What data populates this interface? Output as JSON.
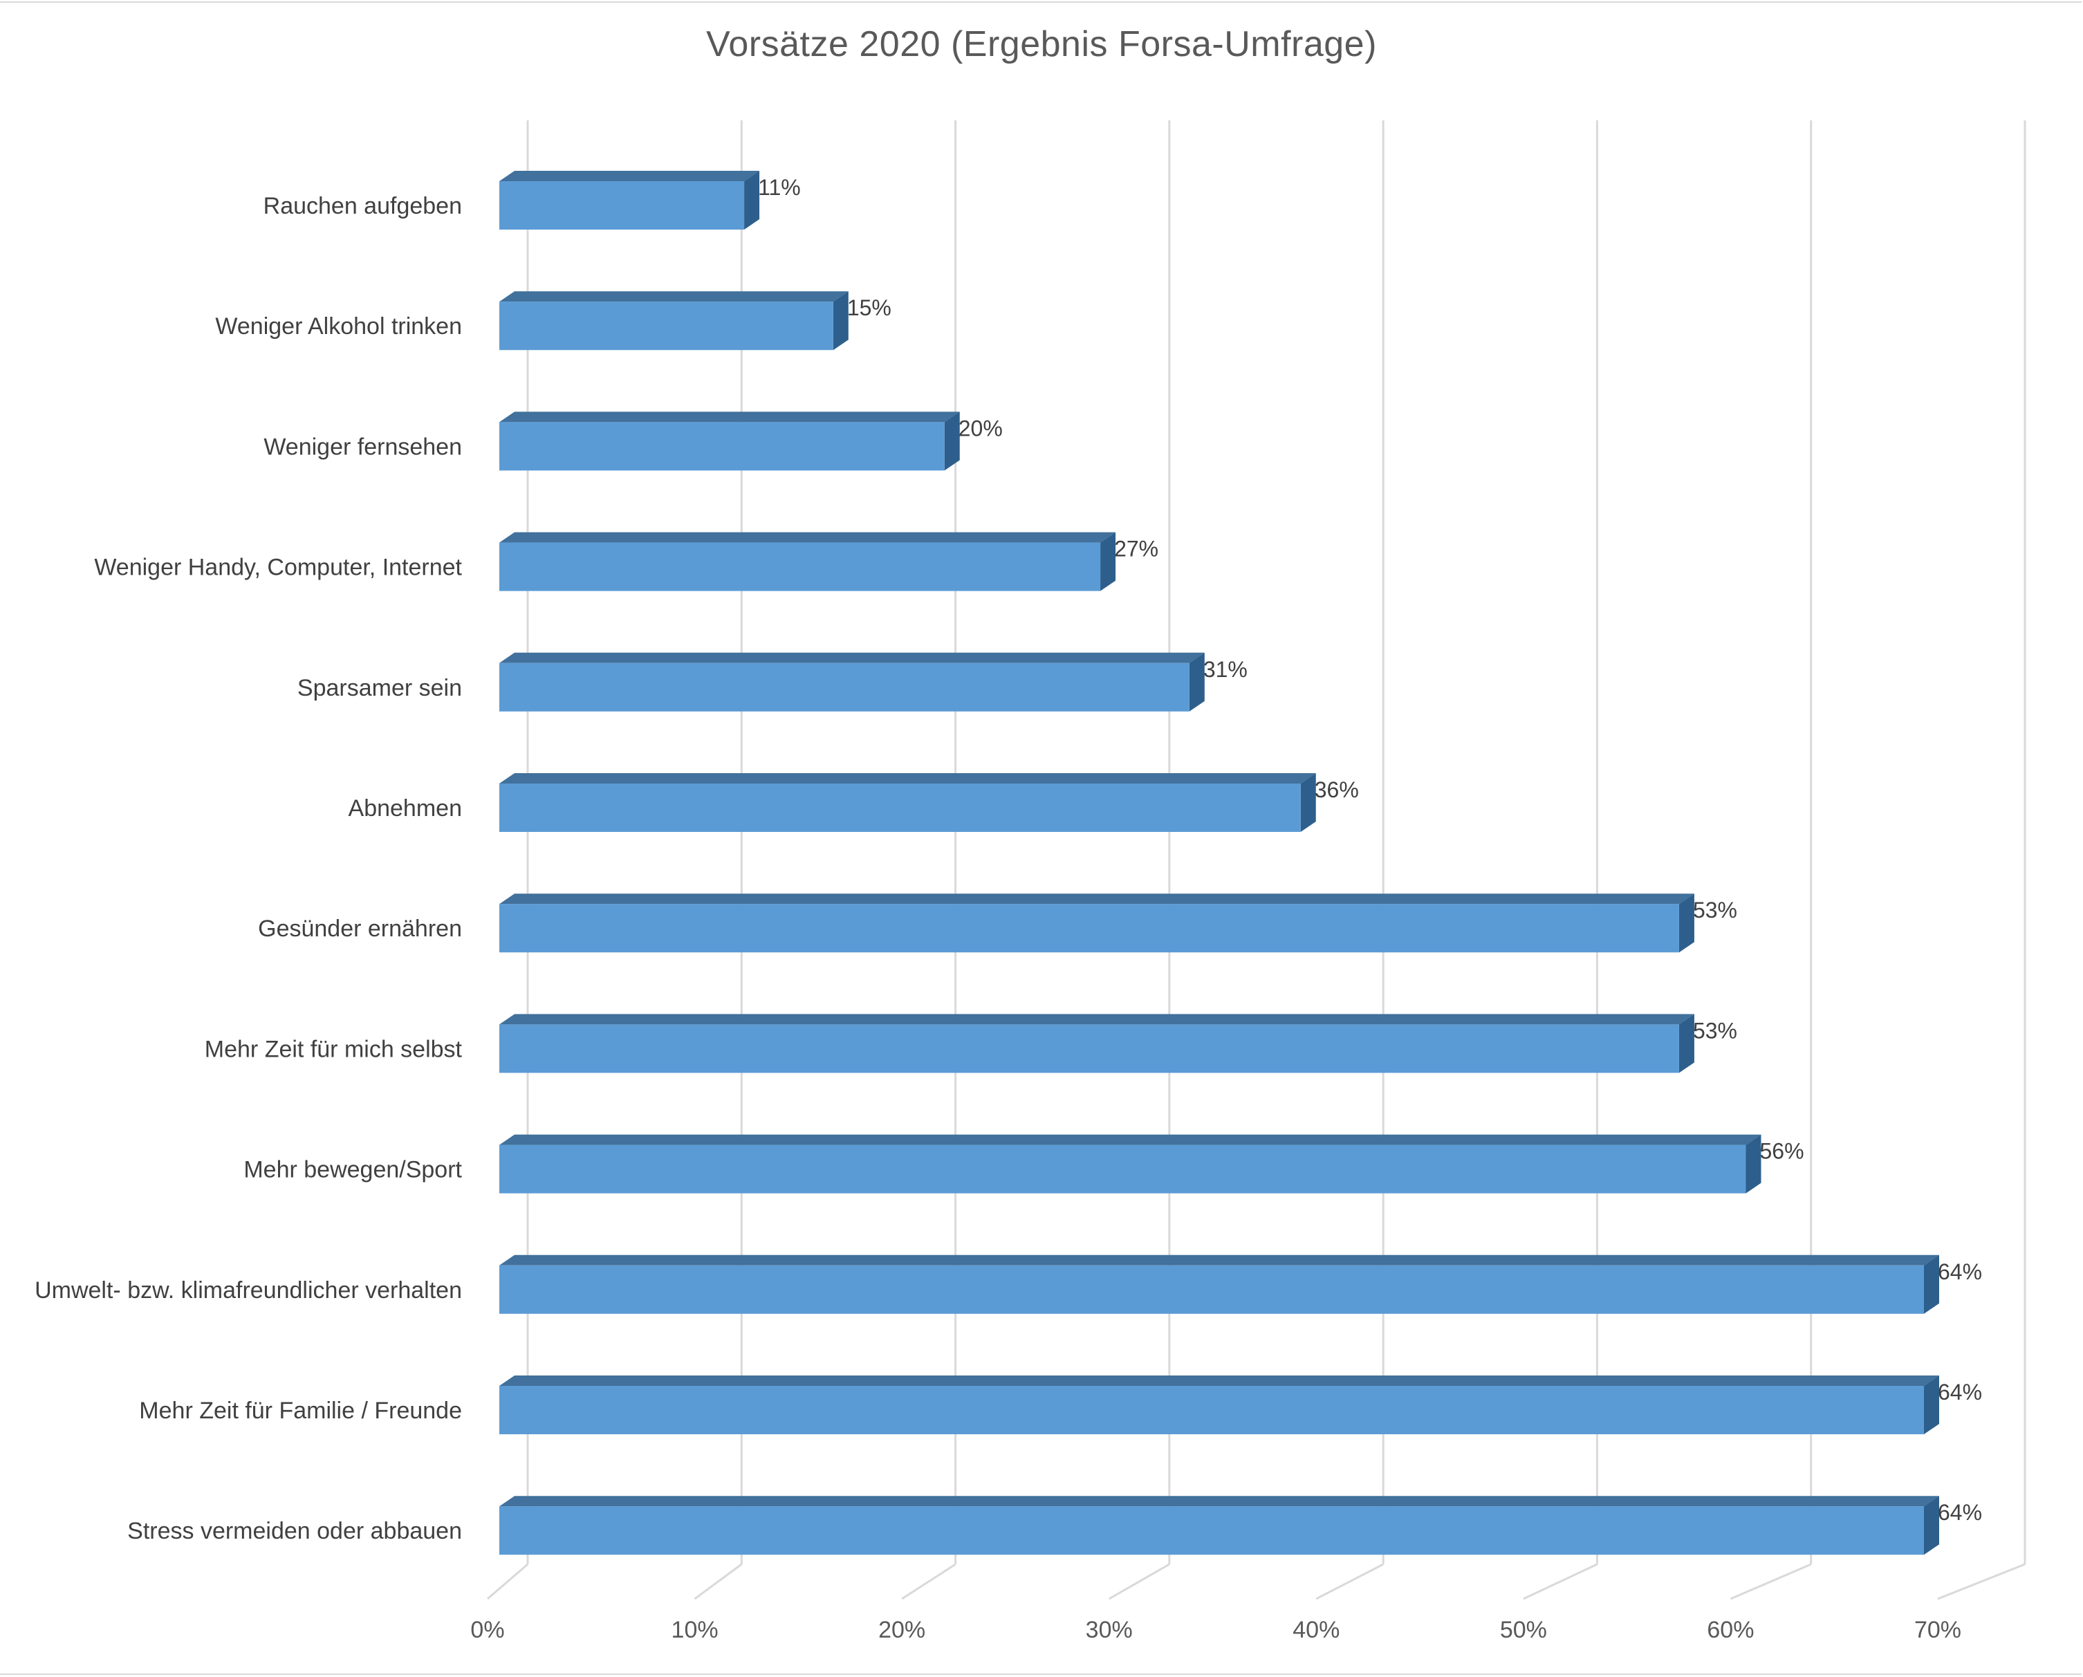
{
  "chart_data": {
    "type": "bar",
    "orientation": "horizontal",
    "style": "3d",
    "title": "Vorsätze 2020 (Ergebnis Forsa-Umfrage)",
    "xlabel": "",
    "ylabel": "",
    "xlim": [
      0,
      70
    ],
    "x_ticks": [
      "0%",
      "10%",
      "20%",
      "30%",
      "40%",
      "50%",
      "60%",
      "70%"
    ],
    "grid": true,
    "legend": "none",
    "colors": {
      "bar_front": "#5b9bd5",
      "bar_top": "#41719c",
      "bar_side": "#2e5f8c",
      "grid": "#d9d9d9"
    },
    "categories": [
      "Rauchen aufgeben",
      "Weniger Alkohol trinken",
      "Weniger fernsehen",
      "Weniger Handy, Computer, Internet",
      "Sparsamer sein",
      "Abnehmen",
      "Gesünder ernähren",
      "Mehr Zeit für mich selbst",
      "Mehr bewegen/Sport",
      "Umwelt- bzw. klimafreundlicher verhalten",
      "Mehr Zeit für Familie / Freunde",
      "Stress vermeiden oder abbauen"
    ],
    "values": [
      11,
      15,
      20,
      27,
      31,
      36,
      53,
      53,
      56,
      64,
      64,
      64
    ],
    "data_labels": [
      "11%",
      "15%",
      "20%",
      "27%",
      "31%",
      "36%",
      "53%",
      "53%",
      "56%",
      "64%",
      "64%",
      "64%"
    ]
  }
}
